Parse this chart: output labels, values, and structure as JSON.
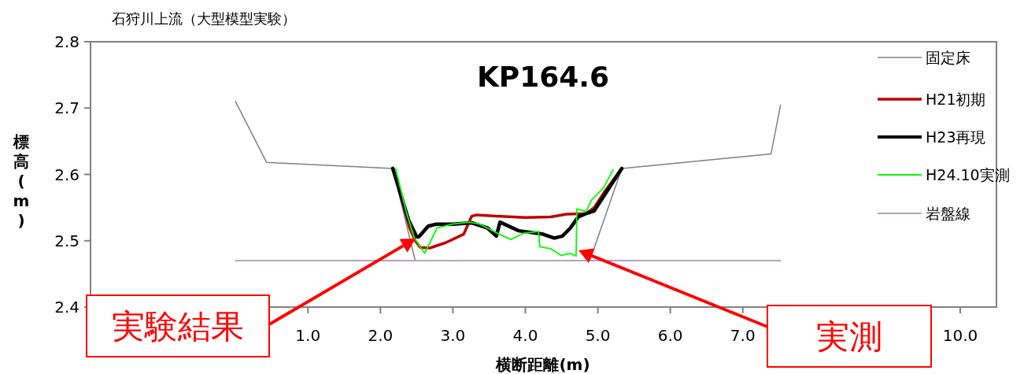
{
  "chart_data": {
    "type": "line",
    "title": "石狩川上流（大型模型実験）",
    "subtitle": "KP164.6",
    "xlabel": "横断距離(m)",
    "ylabel": "標高(m)",
    "xlim": [
      -2,
      10.5
    ],
    "ylim": [
      2.4,
      2.8
    ],
    "xticks": [
      {
        "value": 1,
        "label": "1.0"
      },
      {
        "value": 2,
        "label": "2.0"
      },
      {
        "value": 3,
        "label": "3.0"
      },
      {
        "value": 4,
        "label": "4.0"
      },
      {
        "value": 5,
        "label": "5.0"
      },
      {
        "value": 6,
        "label": "6.0"
      },
      {
        "value": 7,
        "label": "7.0"
      },
      {
        "value": 10,
        "label": "10.0"
      }
    ],
    "yticks": [
      2.4,
      2.5,
      2.6,
      2.7,
      2.8
    ],
    "legend": "right",
    "grid": false,
    "marker": "none",
    "series": [
      {
        "name": "固定床",
        "color": "#808080",
        "x": [
          0,
          0.43,
          2.17,
          2.48,
          4.89,
          5.33,
          7.39,
          7.52
        ],
        "values": [
          2.71,
          2.618,
          2.609,
          2.47,
          2.47,
          2.609,
          2.631,
          2.704
        ]
      },
      {
        "name": "H21初期",
        "color": "#c00000",
        "x": [
          2.17,
          2.25,
          2.4,
          2.48,
          2.55,
          2.68,
          2.9,
          3.15,
          3.26,
          3.33,
          3.6,
          4.0,
          4.35,
          4.57,
          4.84,
          4.95,
          5.1,
          5.33
        ],
        "values": [
          2.609,
          2.58,
          2.52,
          2.5,
          2.49,
          2.489,
          2.497,
          2.51,
          2.537,
          2.539,
          2.537,
          2.535,
          2.536,
          2.54,
          2.541,
          2.55,
          2.575,
          2.609
        ]
      },
      {
        "name": "H23再現",
        "color": "#000000",
        "x": [
          2.17,
          2.39,
          2.5,
          2.53,
          2.66,
          2.77,
          3.0,
          3.26,
          3.48,
          3.6,
          3.65,
          3.91,
          4.24,
          4.4,
          4.51,
          4.62,
          4.73,
          4.84,
          4.95,
          5.33
        ],
        "values": [
          2.609,
          2.531,
          2.506,
          2.506,
          2.522,
          2.525,
          2.525,
          2.527,
          2.519,
          2.507,
          2.528,
          2.515,
          2.51,
          2.504,
          2.507,
          2.519,
          2.536,
          2.541,
          2.545,
          2.609
        ]
      },
      {
        "name": "H24.10実測",
        "color": "#00ff00",
        "x": [
          2.21,
          2.36,
          2.47,
          2.61,
          2.78,
          2.99,
          3.23,
          3.37,
          3.64,
          3.8,
          3.97,
          4.18,
          4.2,
          4.35,
          4.49,
          4.62,
          4.7,
          4.71,
          4.84,
          4.91,
          5.08,
          5.21
        ],
        "values": [
          2.609,
          2.542,
          2.504,
          2.481,
          2.519,
          2.525,
          2.528,
          2.525,
          2.51,
          2.502,
          2.511,
          2.514,
          2.491,
          2.488,
          2.478,
          2.481,
          2.477,
          2.548,
          2.544,
          2.561,
          2.58,
          2.607
        ]
      },
      {
        "name": "岩盤線",
        "color": "#b3a2c7",
        "x": [
          0,
          7.52
        ],
        "values": [
          2.47,
          2.47
        ]
      }
    ],
    "annotations": [
      "実験結果",
      "実測"
    ]
  }
}
